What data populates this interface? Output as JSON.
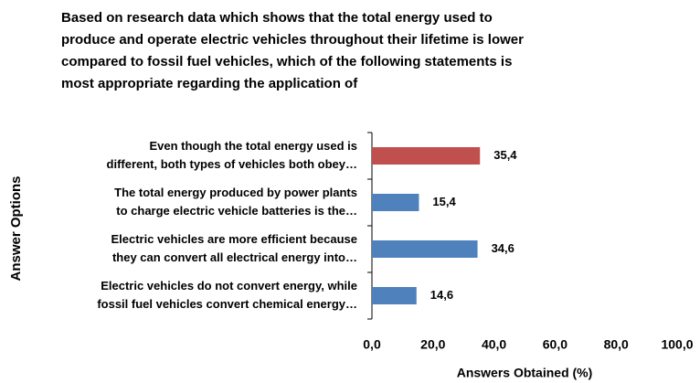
{
  "chart_data": {
    "type": "bar",
    "orientation": "horizontal",
    "title": [
      "Based on research data which shows that the total energy used to",
      "produce and operate electric vehicles throughout their lifetime is lower",
      "compared to fossil fuel vehicles, which of the following statements is",
      "most appropriate regarding the application of"
    ],
    "categories": [
      [
        "Even though the total energy used is",
        "different, both types of vehicles both obey…"
      ],
      [
        "The total energy produced by power plants",
        "to charge electric vehicle batteries is the…"
      ],
      [
        "Electric vehicles are more efficient because",
        "they can convert all electrical energy into…"
      ],
      [
        "Electric vehicles do not convert energy, while",
        "fossil fuel vehicles convert chemical energy…"
      ]
    ],
    "values": [
      35.4,
      15.4,
      34.6,
      14.6
    ],
    "value_labels": [
      "35,4",
      "15,4",
      "34,6",
      "14,6"
    ],
    "colors": [
      "#c0504d",
      "#4f81bd",
      "#4f81bd",
      "#4f81bd"
    ],
    "xlim": [
      0,
      100
    ],
    "xticks": [
      {
        "value": 0,
        "label": "0,0"
      },
      {
        "value": 20,
        "label": "20,0"
      },
      {
        "value": 40,
        "label": "40,0"
      },
      {
        "value": 60,
        "label": "60,0"
      },
      {
        "value": 80,
        "label": "80,0"
      },
      {
        "value": 100,
        "label": "100,0"
      }
    ],
    "xlabel": "Answers Obtained (%)",
    "ylabel": "Answer Options"
  }
}
